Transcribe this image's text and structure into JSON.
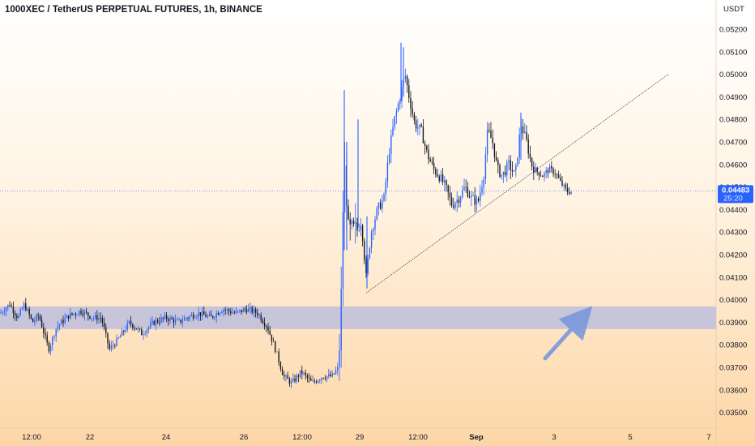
{
  "title": "1000XEC / TetherUS PERPETUAL FUTURES, 1h, BINANCE",
  "currency": "USDT",
  "colors": {
    "up_candle": "#2962ff",
    "down_candle": "#131722",
    "price_badge": "#2962ff",
    "zone": "#b4b9e0",
    "background_top": "#ffffff",
    "background_bottom": "#fdd6a6"
  },
  "price_label": {
    "value": "0.04483",
    "countdown": "25:20"
  },
  "chart_data": {
    "type": "candlestick",
    "y_ticks": [
      "0.05200",
      "0.05100",
      "0.05000",
      "0.04900",
      "0.04800",
      "0.04700",
      "0.04600",
      "0.04500",
      "0.04400",
      "0.04300",
      "0.04200",
      "0.04100",
      "0.04000",
      "0.03900",
      "0.03800",
      "0.03700",
      "0.03600",
      "0.03500"
    ],
    "x_ticks": [
      "12:00",
      "22",
      "24",
      "26",
      "12:00",
      "29",
      "12:00",
      "Sep",
      "3",
      "5",
      "7"
    ],
    "x_ticks_bold": [
      "Sep"
    ],
    "ylim": [
      0.0345,
      0.0525
    ],
    "current_price": 0.04483,
    "support_zone": [
      0.0387,
      0.0397
    ],
    "trendline": {
      "from": {
        "x": "28 Aug",
        "y": 0.0403
      },
      "to": {
        "x": "5 Sep",
        "y": 0.05
      }
    },
    "price_path": [
      [
        0,
        0.0394
      ],
      [
        12,
        0.0398
      ],
      [
        22,
        0.0392
      ],
      [
        30,
        0.0398
      ],
      [
        40,
        0.039
      ],
      [
        48,
        0.0393
      ],
      [
        60,
        0.0378
      ],
      [
        70,
        0.0388
      ],
      [
        85,
        0.0393
      ],
      [
        100,
        0.0395
      ],
      [
        115,
        0.0392
      ],
      [
        125,
        0.0392
      ],
      [
        135,
        0.0378
      ],
      [
        145,
        0.0382
      ],
      [
        160,
        0.039
      ],
      [
        175,
        0.0385
      ],
      [
        190,
        0.039
      ],
      [
        205,
        0.0392
      ],
      [
        220,
        0.039
      ],
      [
        230,
        0.0392
      ],
      [
        245,
        0.0394
      ],
      [
        260,
        0.0392
      ],
      [
        275,
        0.0396
      ],
      [
        290,
        0.0394
      ],
      [
        305,
        0.0396
      ],
      [
        318,
        0.0394
      ],
      [
        330,
        0.0388
      ],
      [
        340,
        0.0378
      ],
      [
        350,
        0.0366
      ],
      [
        360,
        0.0363
      ],
      [
        372,
        0.0368
      ],
      [
        385,
        0.0363
      ],
      [
        398,
        0.0366
      ],
      [
        410,
        0.0366
      ],
      [
        418,
        0.037
      ],
      [
        421,
        0.0398
      ],
      [
        423,
        0.0437
      ],
      [
        426,
        0.046
      ],
      [
        430,
        0.043
      ],
      [
        440,
        0.043
      ],
      [
        446,
        0.0435
      ],
      [
        452,
        0.041
      ],
      [
        458,
        0.043
      ],
      [
        466,
        0.044
      ],
      [
        474,
        0.0445
      ],
      [
        480,
        0.0465
      ],
      [
        487,
        0.048
      ],
      [
        494,
        0.049
      ],
      [
        500,
        0.05
      ],
      [
        505,
        0.049
      ],
      [
        512,
        0.0478
      ],
      [
        520,
        0.0475
      ],
      [
        527,
        0.0465
      ],
      [
        535,
        0.0458
      ],
      [
        542,
        0.0455
      ],
      [
        550,
        0.045
      ],
      [
        558,
        0.0442
      ],
      [
        566,
        0.0445
      ],
      [
        574,
        0.045
      ],
      [
        582,
        0.0445
      ],
      [
        590,
        0.0443
      ],
      [
        597,
        0.0455
      ],
      [
        602,
        0.0475
      ],
      [
        608,
        0.047
      ],
      [
        614,
        0.0458
      ],
      [
        620,
        0.0455
      ],
      [
        628,
        0.046
      ],
      [
        636,
        0.0455
      ],
      [
        643,
        0.0478
      ],
      [
        650,
        0.047
      ],
      [
        656,
        0.046
      ],
      [
        662,
        0.0457
      ],
      [
        670,
        0.0455
      ],
      [
        678,
        0.0458
      ],
      [
        686,
        0.0456
      ],
      [
        692,
        0.0452
      ],
      [
        700,
        0.0448
      ],
      [
        706,
        0.0448
      ]
    ],
    "arrow": {
      "from": {
        "x": "4 Sep 12:00",
        "y": 0.0374
      },
      "to": {
        "x": "5 Sep",
        "y": 0.0393
      }
    }
  }
}
